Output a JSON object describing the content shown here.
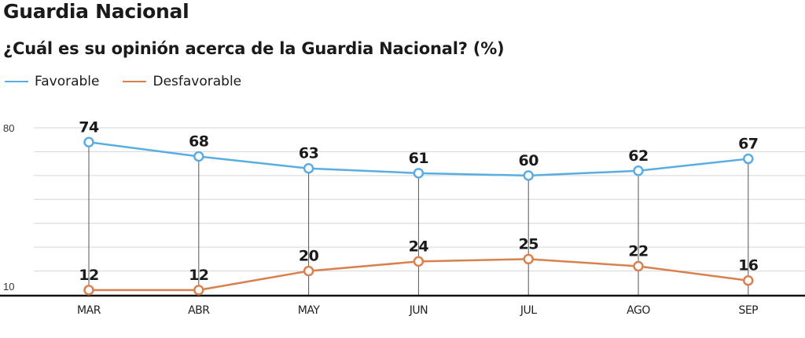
{
  "header": {
    "title": "Guardia Nacional",
    "subtitle": "¿Cuál es su opinión acerca de la Guardia Nacional? (%)"
  },
  "legend": {
    "items": [
      {
        "label": "Favorable",
        "color": "#5aade3"
      },
      {
        "label": "Desfavorable",
        "color": "#d9804f"
      }
    ]
  },
  "chart_data": {
    "type": "line",
    "title": "Guardia Nacional",
    "subtitle": "¿Cuál es su opinión acerca de la Guardia Nacional? (%)",
    "xlabel": "",
    "ylabel": "",
    "categories": [
      "MAR",
      "ABR",
      "MAY",
      "JUN",
      "JUL",
      "AGO",
      "SEP"
    ],
    "series": [
      {
        "name": "Favorable",
        "color": "#5aade3",
        "values": [
          74,
          68,
          63,
          61,
          60,
          62,
          67
        ]
      },
      {
        "name": "Desfavorable",
        "color": "#d9804f",
        "values": [
          12,
          12,
          20,
          24,
          25,
          22,
          16
        ]
      }
    ],
    "ylim": [
      10,
      80
    ],
    "yticks": [
      10,
      20,
      30,
      40,
      50,
      60,
      70,
      80
    ],
    "ytick_labels": [
      "10",
      "80"
    ],
    "grid": true,
    "legend_position": "top-left",
    "data_labels": true
  }
}
